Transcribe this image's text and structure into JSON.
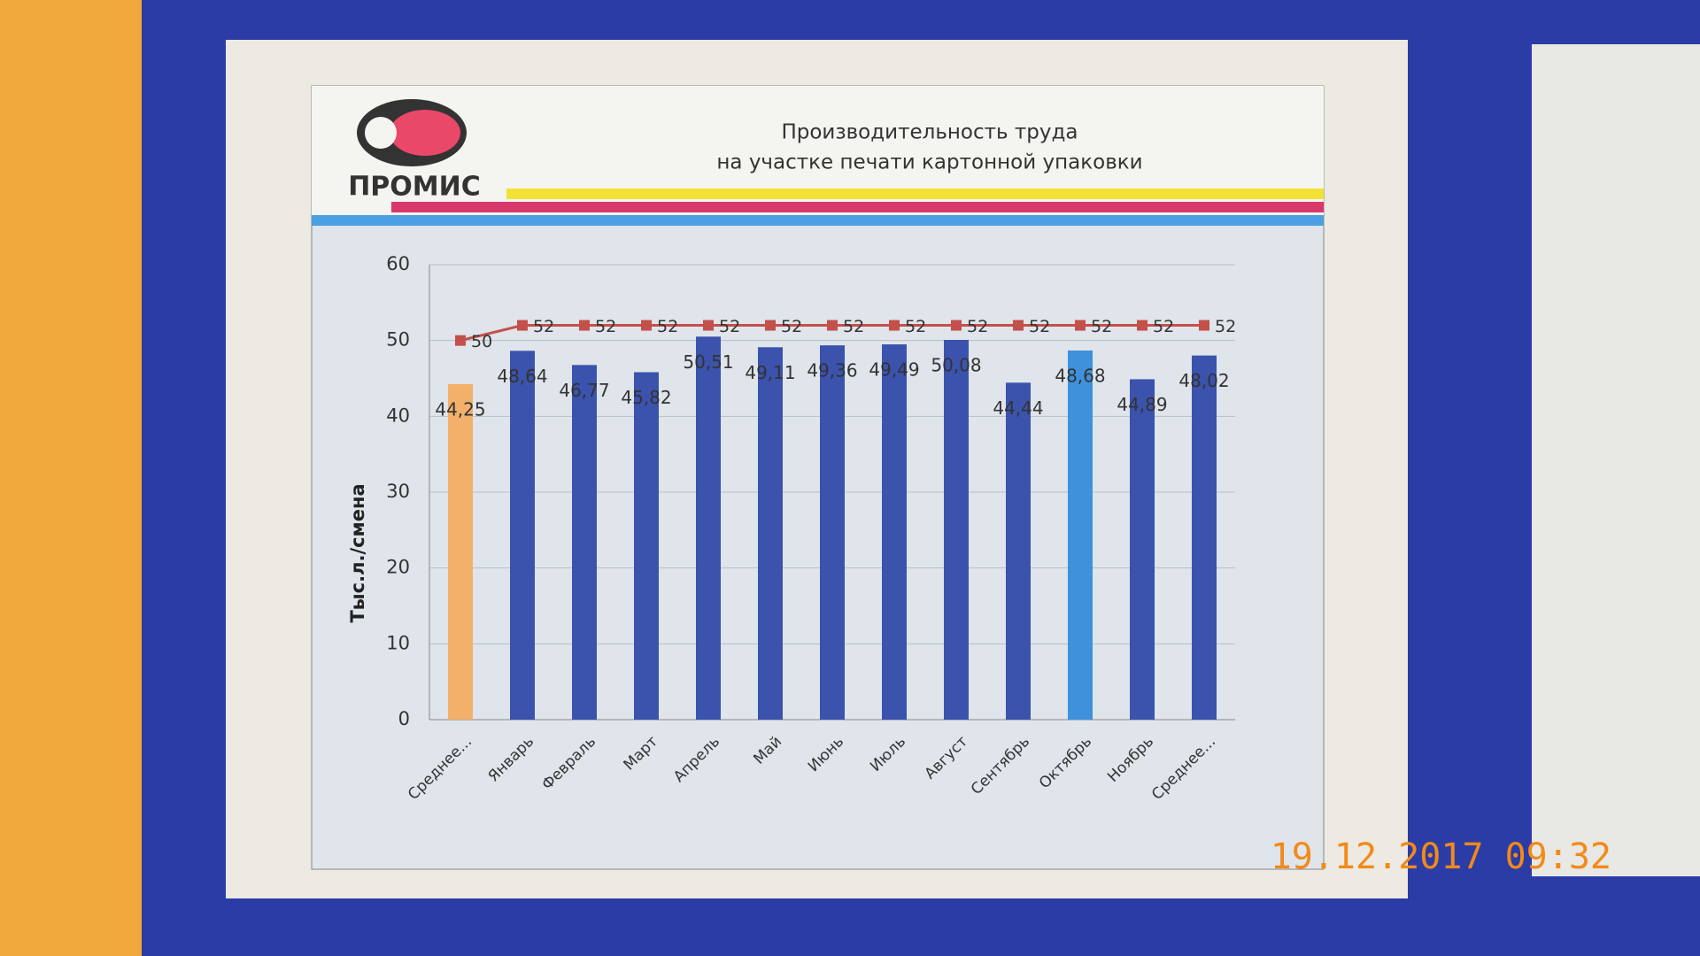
{
  "logo": "ПРОМИС",
  "timestamp": "19.12.2017 09:32",
  "chart_data": {
    "type": "bar_line",
    "title": "Производительность труда",
    "subtitle": "на участке печати картонной упаковки",
    "y_label": "Тыс.л./смена",
    "categories": [
      "Среднее...",
      "Январь",
      "Февраль",
      "Март",
      "Апрель",
      "Май",
      "Июнь",
      "Июль",
      "Август",
      "Сентябрь",
      "Октябрь",
      "Ноябрь",
      "Среднее..."
    ],
    "series": [
      {
        "type": "bar",
        "colors": [
          "#f2b06a",
          "#3b53ad",
          "#3b53ad",
          "#3b53ad",
          "#3b53ad",
          "#3b53ad",
          "#3b53ad",
          "#3b53ad",
          "#3b53ad",
          "#3b53ad",
          "#3e92dc",
          "#3b53ad",
          "#3b53ad"
        ],
        "values": [
          44.25,
          48.64,
          46.77,
          45.82,
          50.51,
          49.11,
          49.36,
          49.49,
          50.08,
          44.44,
          48.68,
          44.89,
          48.02
        ],
        "value_labels": [
          "44,25",
          "48,64",
          "46,77",
          "45,82",
          "50,51",
          "49,11",
          "49,36",
          "49,49",
          "50,08",
          "44,44",
          "48,68",
          "44,89",
          "48,02"
        ]
      },
      {
        "type": "line",
        "color": "#c4504c",
        "values": [
          50,
          52,
          52,
          52,
          52,
          52,
          52,
          52,
          52,
          52,
          52,
          52,
          52
        ]
      }
    ],
    "ylim": [
      0,
      60
    ],
    "yticks": [
      0,
      10,
      20,
      30,
      40,
      50,
      60
    ],
    "grid": true
  }
}
